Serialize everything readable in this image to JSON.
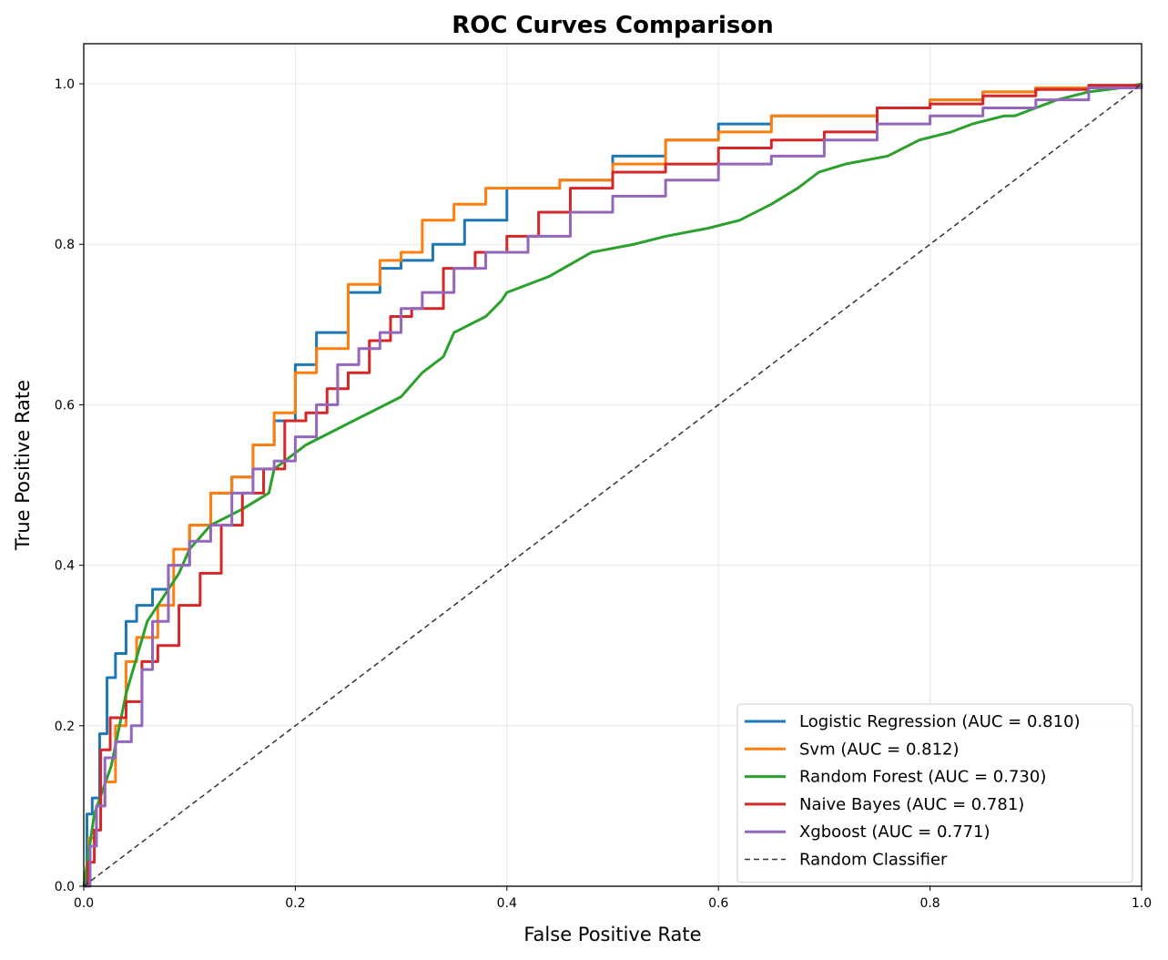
{
  "chart_data": {
    "type": "line",
    "title": "ROC Curves Comparison",
    "xlabel": "False Positive Rate",
    "ylabel": "True Positive Rate",
    "xlim": [
      0,
      1
    ],
    "ylim": [
      0,
      1.05
    ],
    "xticks": [
      "0.0",
      "0.2",
      "0.4",
      "0.6",
      "0.8",
      "1.0"
    ],
    "yticks": [
      "0.0",
      "0.2",
      "0.4",
      "0.6",
      "0.8",
      "1.0"
    ],
    "grid": true,
    "legend_position": "lower-right",
    "series": [
      {
        "name": "Logistic Regression (AUC = 0.810)",
        "color": "#1f77b4",
        "style": "step",
        "x": [
          0,
          0.003,
          0.008,
          0.015,
          0.022,
          0.03,
          0.04,
          0.05,
          0.065,
          0.08,
          0.1,
          0.12,
          0.14,
          0.16,
          0.18,
          0.2,
          0.22,
          0.25,
          0.28,
          0.3,
          0.33,
          0.36,
          0.4,
          0.45,
          0.5,
          0.55,
          0.6,
          0.65,
          0.7,
          0.75,
          0.8,
          0.85,
          0.9,
          0.95,
          1.0
        ],
        "y": [
          0,
          0.09,
          0.11,
          0.19,
          0.26,
          0.29,
          0.33,
          0.35,
          0.37,
          0.4,
          0.45,
          0.49,
          0.51,
          0.55,
          0.58,
          0.65,
          0.69,
          0.74,
          0.77,
          0.78,
          0.8,
          0.83,
          0.87,
          0.88,
          0.91,
          0.93,
          0.95,
          0.96,
          0.96,
          0.97,
          0.98,
          0.99,
          0.995,
          0.998,
          1.0
        ]
      },
      {
        "name": "Svm (AUC = 0.812)",
        "color": "#ff7f0e",
        "style": "step",
        "x": [
          0,
          0.005,
          0.012,
          0.02,
          0.03,
          0.04,
          0.05,
          0.07,
          0.085,
          0.1,
          0.12,
          0.14,
          0.16,
          0.18,
          0.2,
          0.22,
          0.25,
          0.28,
          0.3,
          0.32,
          0.35,
          0.38,
          0.4,
          0.45,
          0.5,
          0.55,
          0.6,
          0.65,
          0.7,
          0.75,
          0.8,
          0.85,
          0.9,
          0.95,
          1.0
        ],
        "y": [
          0,
          0.06,
          0.1,
          0.13,
          0.2,
          0.28,
          0.31,
          0.35,
          0.42,
          0.45,
          0.49,
          0.51,
          0.55,
          0.59,
          0.64,
          0.67,
          0.75,
          0.78,
          0.79,
          0.83,
          0.85,
          0.87,
          0.87,
          0.88,
          0.9,
          0.93,
          0.94,
          0.96,
          0.96,
          0.97,
          0.98,
          0.99,
          0.995,
          0.998,
          1.0
        ]
      },
      {
        "name": "Random Forest (AUC = 0.730)",
        "color": "#2ca02c",
        "style": "line",
        "x": [
          0,
          0.01,
          0.026,
          0.04,
          0.06,
          0.09,
          0.1,
          0.12,
          0.15,
          0.175,
          0.18,
          0.21,
          0.24,
          0.27,
          0.3,
          0.32,
          0.34,
          0.35,
          0.38,
          0.395,
          0.4,
          0.44,
          0.48,
          0.52,
          0.55,
          0.59,
          0.62,
          0.65,
          0.675,
          0.695,
          0.72,
          0.76,
          0.79,
          0.82,
          0.84,
          0.87,
          0.88,
          0.9,
          0.92,
          0.95,
          0.98,
          1.0
        ],
        "y": [
          0,
          0.09,
          0.15,
          0.24,
          0.33,
          0.39,
          0.42,
          0.45,
          0.47,
          0.49,
          0.52,
          0.55,
          0.57,
          0.59,
          0.61,
          0.64,
          0.66,
          0.69,
          0.71,
          0.73,
          0.74,
          0.76,
          0.79,
          0.8,
          0.81,
          0.82,
          0.83,
          0.85,
          0.87,
          0.89,
          0.9,
          0.91,
          0.93,
          0.94,
          0.95,
          0.96,
          0.96,
          0.97,
          0.98,
          0.99,
          0.995,
          1.0
        ]
      },
      {
        "name": "Naive Bayes (AUC = 0.781)",
        "color": "#d62728",
        "style": "step",
        "x": [
          0,
          0.004,
          0.01,
          0.016,
          0.025,
          0.04,
          0.055,
          0.07,
          0.09,
          0.11,
          0.13,
          0.15,
          0.17,
          0.19,
          0.21,
          0.23,
          0.25,
          0.27,
          0.29,
          0.31,
          0.34,
          0.37,
          0.4,
          0.43,
          0.46,
          0.5,
          0.55,
          0.6,
          0.65,
          0.7,
          0.75,
          0.8,
          0.85,
          0.9,
          0.95,
          1.0
        ],
        "y": [
          0,
          0.03,
          0.07,
          0.17,
          0.21,
          0.23,
          0.28,
          0.3,
          0.35,
          0.39,
          0.45,
          0.49,
          0.52,
          0.58,
          0.59,
          0.62,
          0.64,
          0.68,
          0.71,
          0.72,
          0.77,
          0.79,
          0.81,
          0.84,
          0.87,
          0.89,
          0.9,
          0.92,
          0.93,
          0.94,
          0.97,
          0.975,
          0.985,
          0.993,
          0.998,
          1.0
        ]
      },
      {
        "name": "Xgboost (AUC = 0.771)",
        "color": "#9467bd",
        "style": "step",
        "x": [
          0,
          0.006,
          0.012,
          0.02,
          0.03,
          0.045,
          0.055,
          0.065,
          0.08,
          0.1,
          0.12,
          0.14,
          0.16,
          0.18,
          0.2,
          0.22,
          0.24,
          0.26,
          0.28,
          0.3,
          0.32,
          0.35,
          0.38,
          0.42,
          0.46,
          0.5,
          0.55,
          0.6,
          0.65,
          0.7,
          0.75,
          0.8,
          0.85,
          0.9,
          0.95,
          1.0
        ],
        "y": [
          0,
          0.05,
          0.1,
          0.16,
          0.18,
          0.2,
          0.27,
          0.33,
          0.4,
          0.43,
          0.45,
          0.49,
          0.52,
          0.53,
          0.56,
          0.6,
          0.65,
          0.67,
          0.69,
          0.72,
          0.74,
          0.77,
          0.79,
          0.81,
          0.84,
          0.86,
          0.88,
          0.9,
          0.91,
          0.93,
          0.95,
          0.96,
          0.97,
          0.98,
          0.995,
          1.0
        ]
      },
      {
        "name": "Random Classifier",
        "color": "#333333",
        "style": "dashed",
        "x": [
          0,
          1
        ],
        "y": [
          0,
          1
        ]
      }
    ]
  }
}
